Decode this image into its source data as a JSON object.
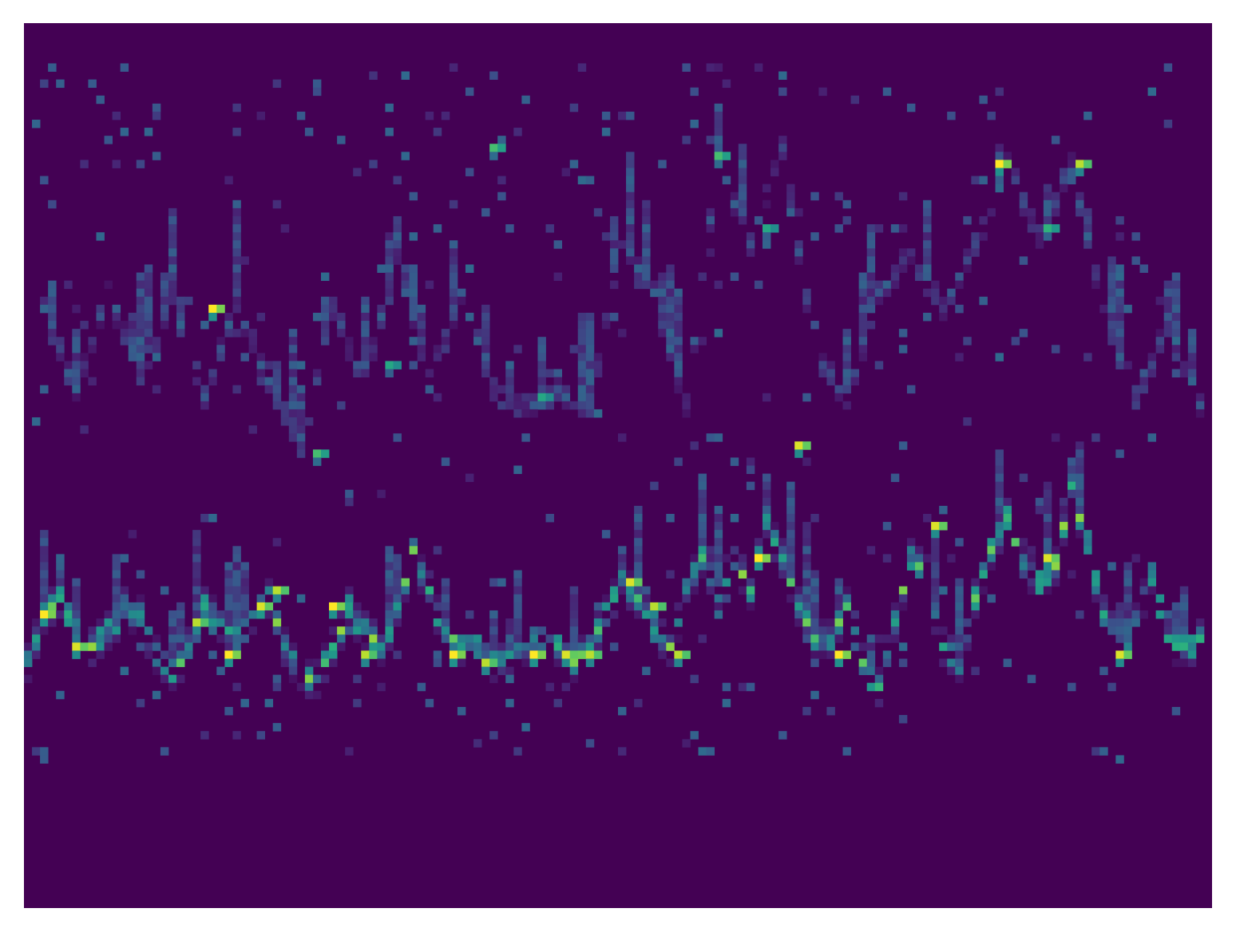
{
  "chart_data": {
    "type": "heatmap",
    "title": "",
    "xlabel": "",
    "ylabel": "",
    "axes_visible": false,
    "grid": false,
    "legend": "none",
    "colormap": "viridis",
    "colors": {
      "low": "#440154",
      "mid": "#21918c",
      "high": "#fde725"
    },
    "n_cols": 148,
    "n_rows": 110,
    "value_range": [
      0,
      1
    ],
    "ridges": [
      {
        "description_key": "strong_ridge",
        "row_at_col": [
          [
            0,
            79
          ],
          [
            2,
            73
          ],
          [
            4,
            71
          ],
          [
            6,
            75
          ],
          [
            8,
            77
          ],
          [
            10,
            75
          ],
          [
            12,
            72
          ],
          [
            14,
            73
          ],
          [
            16,
            78
          ],
          [
            18,
            80
          ],
          [
            20,
            77
          ],
          [
            22,
            72
          ],
          [
            24,
            74
          ],
          [
            26,
            76
          ],
          [
            28,
            73
          ],
          [
            30,
            71
          ],
          [
            32,
            77
          ],
          [
            34,
            80
          ],
          [
            36,
            81
          ],
          [
            38,
            77
          ],
          [
            40,
            72
          ],
          [
            42,
            75
          ],
          [
            44,
            77
          ],
          [
            46,
            72
          ],
          [
            48,
            65
          ],
          [
            50,
            70
          ],
          [
            52,
            75
          ],
          [
            54,
            77
          ],
          [
            56,
            77
          ],
          [
            58,
            79
          ],
          [
            60,
            78
          ],
          [
            62,
            77
          ],
          [
            64,
            76
          ],
          [
            66,
            77
          ],
          [
            68,
            79
          ],
          [
            70,
            77
          ],
          [
            72,
            73
          ],
          [
            74,
            68
          ],
          [
            76,
            71
          ],
          [
            78,
            75
          ],
          [
            80,
            77
          ],
          [
            82,
            70
          ],
          [
            84,
            66
          ],
          [
            86,
            70
          ],
          [
            88,
            66
          ],
          [
            90,
            70
          ],
          [
            92,
            61
          ],
          [
            94,
            66
          ],
          [
            96,
            72
          ],
          [
            98,
            76
          ],
          [
            100,
            76
          ],
          [
            102,
            72
          ],
          [
            104,
            79
          ],
          [
            106,
            82
          ],
          [
            108,
            74
          ],
          [
            110,
            66
          ],
          [
            112,
            68
          ],
          [
            114,
            77
          ],
          [
            116,
            79
          ],
          [
            118,
            71
          ],
          [
            120,
            65
          ],
          [
            122,
            61
          ],
          [
            124,
            67
          ],
          [
            126,
            69
          ],
          [
            128,
            67
          ],
          [
            130,
            57
          ],
          [
            132,
            64
          ],
          [
            134,
            73
          ],
          [
            136,
            77
          ],
          [
            138,
            74
          ],
          [
            140,
            68
          ],
          [
            142,
            76
          ],
          [
            144,
            77
          ],
          [
            146,
            76
          ]
        ],
        "intensity": 0.85
      },
      {
        "description_key": "upper_band",
        "row_at_col": [
          [
            2,
            35
          ],
          [
            6,
            45
          ],
          [
            10,
            33
          ],
          [
            14,
            43
          ],
          [
            18,
            34
          ],
          [
            22,
            46
          ],
          [
            26,
            34
          ],
          [
            30,
            44
          ],
          [
            34,
            52
          ],
          [
            38,
            35
          ],
          [
            42,
            44
          ],
          [
            46,
            28
          ],
          [
            50,
            44
          ],
          [
            54,
            33
          ],
          [
            58,
            45
          ],
          [
            62,
            47
          ],
          [
            66,
            45
          ],
          [
            70,
            47
          ],
          [
            74,
            26
          ],
          [
            78,
            33
          ],
          [
            82,
            47
          ],
          [
            86,
            16
          ],
          [
            90,
            27
          ],
          [
            94,
            15
          ],
          [
            98,
            40
          ],
          [
            102,
            46
          ],
          [
            106,
            33
          ],
          [
            110,
            28
          ],
          [
            114,
            35
          ],
          [
            118,
            27
          ],
          [
            122,
            17
          ],
          [
            126,
            26
          ],
          [
            130,
            17
          ],
          [
            134,
            35
          ],
          [
            138,
            46
          ],
          [
            142,
            37
          ],
          [
            146,
            47
          ]
        ],
        "intensity": 0.32
      }
    ],
    "hotspots": [
      [
        2,
        73,
        1.0
      ],
      [
        6,
        77,
        0.95
      ],
      [
        23,
        35,
        1.0
      ],
      [
        21,
        74,
        0.9
      ],
      [
        25,
        78,
        1.0
      ],
      [
        29,
        72,
        0.95
      ],
      [
        31,
        70,
        0.9
      ],
      [
        38,
        72,
        1.0
      ],
      [
        42,
        78,
        0.9
      ],
      [
        53,
        78,
        1.0
      ],
      [
        57,
        79,
        0.9
      ],
      [
        63,
        78,
        1.0
      ],
      [
        67,
        78,
        0.95
      ],
      [
        70,
        78,
        0.9
      ],
      [
        75,
        69,
        0.95
      ],
      [
        78,
        72,
        0.9
      ],
      [
        81,
        78,
        0.9
      ],
      [
        86,
        16,
        0.7
      ],
      [
        91,
        66,
        1.0
      ],
      [
        96,
        52,
        0.95
      ],
      [
        101,
        78,
        1.0
      ],
      [
        113,
        62,
        0.95
      ],
      [
        121,
        17,
        1.0
      ],
      [
        127,
        66,
        0.95
      ],
      [
        131,
        17,
        0.9
      ],
      [
        136,
        78,
        0.95
      ],
      [
        58,
        15,
        0.7
      ],
      [
        64,
        46,
        0.6
      ],
      [
        92,
        25,
        0.6
      ],
      [
        127,
        25,
        0.65
      ],
      [
        36,
        53,
        0.7
      ],
      [
        45,
        42,
        0.6
      ]
    ]
  }
}
